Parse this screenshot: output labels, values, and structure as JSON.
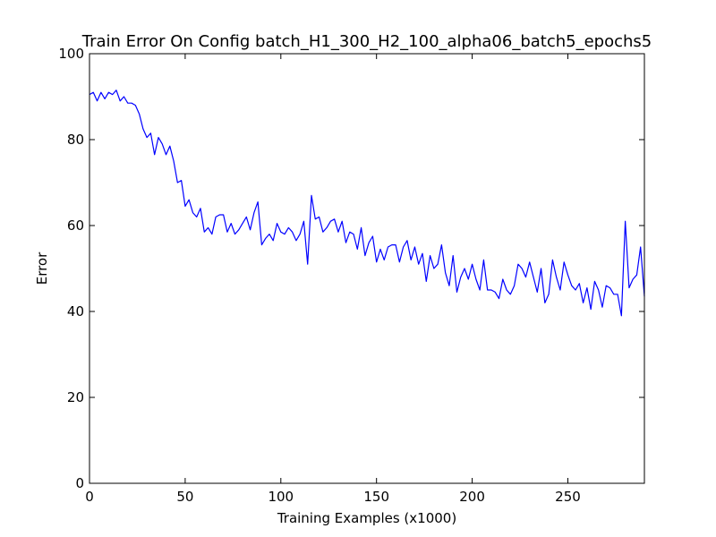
{
  "chart_data": {
    "type": "line",
    "title": "Train Error On Config batch_H1_300_H2_100_alpha06_batch5_epochs5",
    "xlabel": "Training Examples (x1000)",
    "ylabel": "Error",
    "xlim": [
      0,
      290
    ],
    "ylim": [
      0,
      100
    ],
    "xticks": [
      "0",
      "50",
      "100",
      "150",
      "200",
      "250"
    ],
    "yticks": [
      "0",
      "20",
      "40",
      "60",
      "80",
      "100"
    ],
    "grid": false,
    "colors": {
      "line": "#0000ff",
      "axes": "#000000",
      "background": "#ffffff"
    },
    "series": [
      {
        "x": [
          0,
          2,
          4,
          6,
          8,
          10,
          12,
          14,
          16,
          18,
          20,
          22,
          24,
          26,
          28,
          30,
          32,
          34,
          36,
          38,
          40,
          42,
          44,
          46,
          48,
          50,
          52,
          54,
          56,
          58,
          60,
          62,
          64,
          66,
          68,
          70,
          72,
          74,
          76,
          78,
          80,
          82,
          84,
          86,
          88,
          90,
          92,
          94,
          96,
          98,
          100,
          102,
          104,
          106,
          108,
          110,
          112,
          114,
          116,
          118,
          120,
          122,
          124,
          126,
          128,
          130,
          132,
          134,
          136,
          138,
          140,
          142,
          144,
          146,
          148,
          150,
          152,
          154,
          156,
          158,
          160,
          162,
          164,
          166,
          168,
          170,
          172,
          174,
          176,
          178,
          180,
          182,
          184,
          186,
          188,
          190,
          192,
          194,
          196,
          198,
          200,
          202,
          204,
          206,
          208,
          210,
          212,
          214,
          216,
          218,
          220,
          222,
          224,
          226,
          228,
          230,
          232,
          234,
          236,
          238,
          240,
          242,
          244,
          246,
          248,
          250,
          252,
          254,
          256,
          258,
          260,
          262,
          264,
          266,
          268,
          270,
          272,
          274,
          276,
          278,
          280,
          282,
          284,
          286,
          288,
          290
        ],
        "values": [
          90.5,
          91,
          89,
          91,
          89.5,
          91,
          90.5,
          91.5,
          89,
          90,
          88.5,
          88.5,
          88,
          86,
          82.5,
          80.5,
          81.5,
          76.5,
          80.5,
          79,
          76.5,
          78.5,
          75,
          70,
          70.5,
          64.5,
          66,
          63,
          62,
          64,
          58.5,
          59.5,
          58,
          62,
          62.5,
          62.5,
          58.5,
          60.5,
          58,
          59,
          60.5,
          62,
          59,
          63,
          65.5,
          55.5,
          57,
          58,
          56.5,
          60.5,
          58.5,
          58,
          59.5,
          58.5,
          56.5,
          58,
          61,
          51,
          67,
          61.5,
          62,
          58.5,
          59.5,
          61,
          61.5,
          58.5,
          61,
          56,
          58.5,
          58,
          54.5,
          59.5,
          53,
          56,
          57.5,
          51.5,
          54.5,
          52,
          55,
          55.5,
          55.5,
          51.5,
          55,
          56.5,
          52,
          55,
          51,
          53.5,
          47,
          53,
          50,
          51,
          55.5,
          49,
          46,
          53,
          44.5,
          48,
          50,
          47.5,
          51,
          47.5,
          45,
          52,
          45,
          45,
          44.5,
          43,
          47.5,
          45,
          44,
          46,
          51,
          50,
          48,
          51.5,
          48,
          44.5,
          50,
          42,
          44,
          52,
          48,
          45,
          51.5,
          48.5,
          46,
          45,
          46.5,
          42,
          45.5,
          40.5,
          47,
          45,
          41,
          46,
          45.5,
          44,
          44,
          39,
          61,
          45.5,
          47.5,
          48.5,
          55,
          43.5
        ]
      }
    ]
  }
}
